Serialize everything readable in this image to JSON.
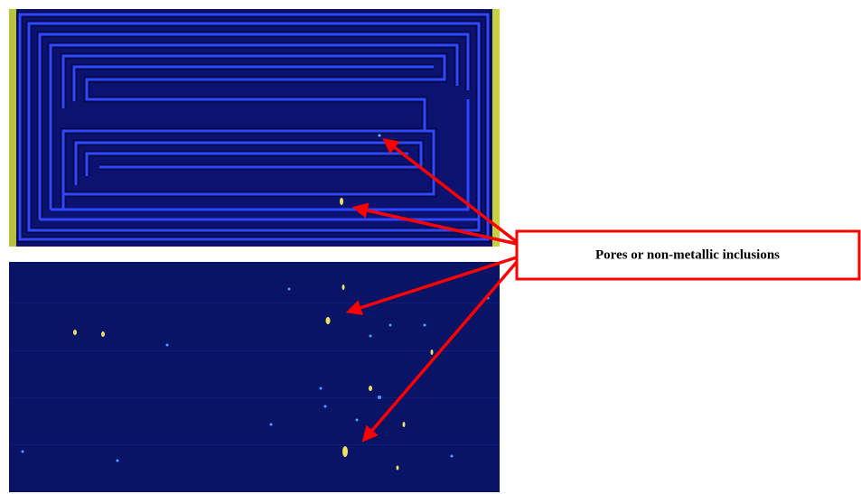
{
  "annotation": {
    "label": "Pores or non-metallic inclusions"
  }
}
